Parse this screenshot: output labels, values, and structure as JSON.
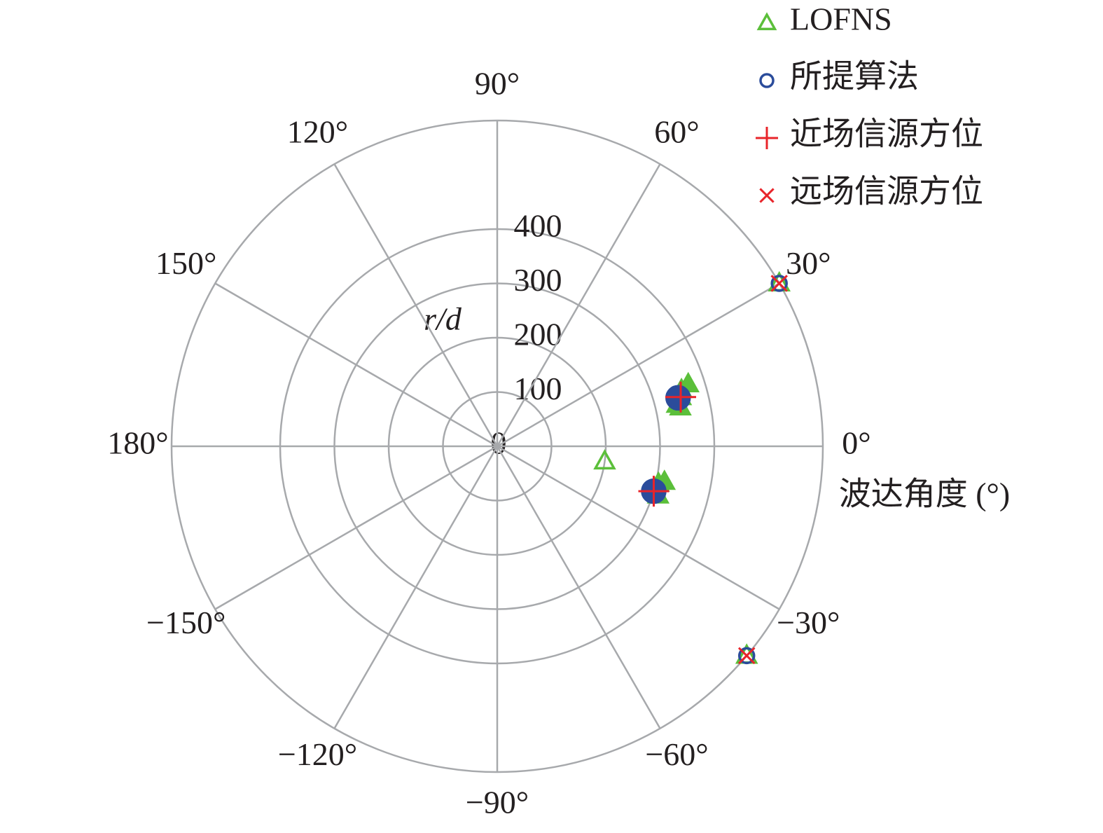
{
  "chart_data": {
    "type": "polar-scatter",
    "rlabel": "r/d",
    "thetalabel": "波达角度 (°)",
    "rlim": [
      0,
      600
    ],
    "rticks": [
      0,
      100,
      200,
      300,
      400
    ],
    "thetaticks": [
      {
        "value": 0,
        "label": "0°"
      },
      {
        "value": 30,
        "label": "30°"
      },
      {
        "value": 60,
        "label": "60°"
      },
      {
        "value": 90,
        "label": "90°"
      },
      {
        "value": 120,
        "label": "120°"
      },
      {
        "value": 150,
        "label": "150°"
      },
      {
        "value": 180,
        "label": "180°"
      },
      {
        "value": -150,
        "label": "−150°"
      },
      {
        "value": -120,
        "label": "−120°"
      },
      {
        "value": -90,
        "label": "−90°"
      },
      {
        "value": -60,
        "label": "−60°"
      },
      {
        "value": -30,
        "label": "−30°"
      }
    ],
    "grid": true,
    "legend": "top-right",
    "series": [
      {
        "name": "LOFNS",
        "color": "#5bbf3a",
        "marker": "triangle",
        "theta": [
          30,
          -40,
          15,
          13,
          17,
          12,
          18,
          -15,
          -13,
          -17,
          -12,
          -8
        ],
        "r": [
          600,
          600,
          350,
          340,
          355,
          345,
          370,
          300,
          305,
          310,
          315,
          200
        ]
      },
      {
        "name": "所提算法",
        "color": "#2b4c9b",
        "marker": "circle",
        "theta": [
          30,
          -40,
          15,
          -16
        ],
        "r": [
          600,
          600,
          345,
          300
        ]
      },
      {
        "name": "近场信源方位",
        "color": "#e8242a",
        "marker": "plus",
        "theta": [
          15,
          -16
        ],
        "r": [
          350,
          300
        ]
      },
      {
        "name": "远场信源方位",
        "color": "#e8242a",
        "marker": "cross",
        "theta": [
          30,
          -40
        ],
        "r": [
          600,
          600
        ]
      }
    ]
  }
}
